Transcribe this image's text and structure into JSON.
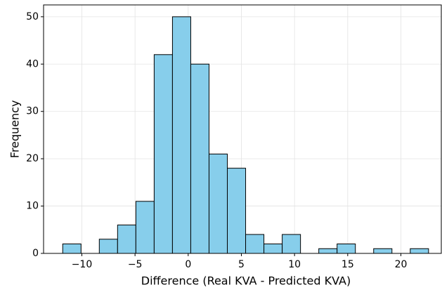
{
  "chart_data": {
    "type": "histogram",
    "xlabel": "Difference (Real KVA - Predicted KVA)",
    "ylabel": "Frequency",
    "bins": [
      -11.8,
      -10.08,
      -8.36,
      -6.64,
      -4.92,
      -3.2,
      -1.48,
      0.24,
      1.96,
      3.68,
      5.4,
      7.12,
      8.84,
      10.56,
      12.28,
      14,
      15.72,
      17.44,
      19.16,
      20.88,
      22.6
    ],
    "values": [
      2,
      0,
      3,
      6,
      11,
      42,
      50,
      40,
      21,
      18,
      4,
      2,
      4,
      0,
      1,
      2,
      0,
      1,
      0,
      1
    ],
    "color": "#87ceeb",
    "edgecolor": "#000000",
    "xlim": [
      -13.6,
      23.8
    ],
    "xticks": [
      {
        "value": -10,
        "label": "−10"
      },
      {
        "value": -5,
        "label": "−5"
      },
      0,
      5,
      10,
      15,
      20
    ],
    "ylim": [
      0,
      52.5
    ],
    "yticks": [
      0,
      10,
      20,
      30,
      40,
      50
    ],
    "grid": true
  }
}
